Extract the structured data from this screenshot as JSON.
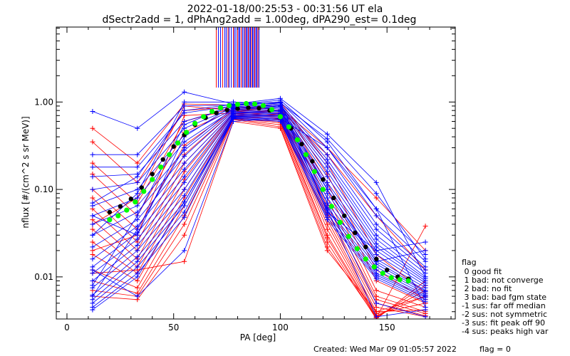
{
  "title": {
    "line1": "2022-01-18/00:25:53 - 00:31:56 UT ela",
    "line2": "dSectr2add = 1, dPhAng2add = 1.00deg, dPA290_est=    0.1deg"
  },
  "footer": {
    "created": "Created: Wed Mar 09 01:05:57 2022",
    "flag": "flag = 0"
  },
  "flag_legend": {
    "title": "flag",
    "items": [
      " 0 good fit",
      " 1 bad: not converge",
      " 2 bad: no fit",
      " 3 bad: bad fgm state",
      "-1 sus: far off median",
      "-2 sus: not symmetric",
      "-3 sus: fit peak off 90",
      "-4 sus: peaks high var"
    ]
  },
  "colors": {
    "axis": "#000000",
    "series_red": "#ff0000",
    "series_blue": "#0000ff",
    "fit_green": "#00ff00",
    "fit_black": "#000000"
  },
  "chart_data": {
    "type": "line",
    "xlabel": "PA [deg]",
    "ylabel": "nflux [#/(cm^2 s sr MeV)]",
    "xlim": [
      -5,
      182
    ],
    "ylim": [
      0.0033,
      7.2
    ],
    "yscale": "log",
    "grid": false,
    "x_ticks": [
      0,
      50,
      100,
      150
    ],
    "x_tick_labels": [
      "0",
      "50",
      "100",
      "150"
    ],
    "y_ticks": [
      0.01,
      0.1,
      1.0
    ],
    "y_tick_labels": [
      "0.01",
      "0.10",
      "1.00"
    ],
    "pa_bins": [
      12,
      33,
      55,
      78,
      100,
      122,
      145,
      168
    ],
    "sector_marker_pa": [
      70,
      71,
      72,
      73,
      74,
      74.7,
      75.5,
      76,
      77,
      78,
      78.5,
      79.2,
      80,
      80.5,
      81,
      81.7,
      82.3,
      83,
      83.5,
      84,
      84.5,
      85,
      85.5,
      86,
      86.5,
      87,
      87.5,
      88,
      88.5,
      89,
      89.5,
      90
    ],
    "fit_black": {
      "x": [
        20,
        25,
        30,
        35,
        40,
        45,
        50,
        55,
        60,
        65,
        70,
        75,
        80,
        85,
        90,
        95,
        100,
        105,
        110,
        115,
        120,
        125,
        130,
        135,
        140,
        145,
        150,
        155,
        160
      ],
      "y": [
        0.055,
        0.064,
        0.078,
        0.105,
        0.15,
        0.22,
        0.31,
        0.42,
        0.55,
        0.66,
        0.75,
        0.81,
        0.84,
        0.86,
        0.85,
        0.8,
        0.68,
        0.5,
        0.33,
        0.21,
        0.13,
        0.08,
        0.05,
        0.032,
        0.022,
        0.016,
        0.012,
        0.01,
        0.0095
      ]
    },
    "fit_green": {
      "x": [
        20,
        24,
        28,
        32,
        36,
        40,
        44,
        48,
        52,
        56,
        60,
        64,
        68,
        72,
        76,
        80,
        84,
        88,
        92,
        96,
        100,
        104,
        108,
        112,
        116,
        120,
        124,
        128,
        132,
        136,
        140,
        144,
        148,
        152,
        156,
        160
      ],
      "y": [
        0.045,
        0.05,
        0.058,
        0.072,
        0.095,
        0.13,
        0.18,
        0.25,
        0.34,
        0.45,
        0.57,
        0.68,
        0.78,
        0.86,
        0.91,
        0.94,
        0.96,
        0.95,
        0.91,
        0.82,
        0.68,
        0.52,
        0.37,
        0.25,
        0.16,
        0.1,
        0.064,
        0.042,
        0.029,
        0.021,
        0.016,
        0.013,
        0.011,
        0.0098,
        0.0093,
        0.009
      ]
    },
    "series_red": [
      [
        0.5,
        0.2,
        0.95,
        0.92,
        1.0,
        0.2,
        0.018,
        0.0065
      ],
      [
        0.35,
        0.12,
        0.8,
        0.88,
        0.95,
        0.15,
        0.012,
        0.0055
      ],
      [
        0.2,
        0.07,
        0.6,
        0.85,
        0.9,
        0.12,
        0.009,
        0.005
      ],
      [
        0.15,
        0.05,
        0.45,
        0.82,
        0.85,
        0.1,
        0.007,
        0.0045
      ],
      [
        0.1,
        0.035,
        0.32,
        0.8,
        0.8,
        0.08,
        0.006,
        0.004
      ],
      [
        0.08,
        0.025,
        0.25,
        0.78,
        0.75,
        0.065,
        0.0055,
        0.0038
      ],
      [
        0.06,
        0.02,
        0.2,
        0.76,
        0.72,
        0.055,
        0.005,
        0.0036
      ],
      [
        0.045,
        0.016,
        0.16,
        0.74,
        0.7,
        0.05,
        0.0045,
        0.0035
      ],
      [
        0.035,
        0.013,
        0.13,
        0.72,
        0.68,
        0.045,
        0.004,
        0.0042
      ],
      [
        0.025,
        0.011,
        0.1,
        0.7,
        0.65,
        0.04,
        0.0038,
        0.005
      ],
      [
        0.018,
        0.009,
        0.08,
        0.68,
        0.63,
        0.035,
        0.0036,
        0.006
      ],
      [
        0.012,
        0.0075,
        0.065,
        0.66,
        0.6,
        0.03,
        0.0035,
        0.007
      ],
      [
        0.009,
        0.0065,
        0.05,
        0.65,
        0.58,
        0.028,
        0.0034,
        0.008
      ],
      [
        0.007,
        0.006,
        0.04,
        0.64,
        0.55,
        0.025,
        0.0033,
        0.009
      ],
      [
        0.006,
        0.0055,
        0.03,
        0.63,
        0.52,
        0.022,
        0.0034,
        0.038
      ],
      [
        0.011,
        0.012,
        0.015,
        0.6,
        0.5,
        0.02,
        0.004,
        0.006
      ],
      [
        0.02,
        0.03,
        0.7,
        0.75,
        0.8,
        0.25,
        0.05,
        0.012
      ],
      [
        0.04,
        0.08,
        0.9,
        0.8,
        0.85,
        0.3,
        0.08,
        0.02
      ]
    ],
    "series_blue": [
      [
        0.78,
        0.5,
        1.3,
        0.95,
        1.1,
        0.43,
        0.12,
        0.01
      ],
      [
        0.25,
        0.25,
        0.9,
        0.93,
        1.05,
        0.35,
        0.06,
        0.0045
      ],
      [
        0.18,
        0.18,
        0.75,
        0.9,
        1.0,
        0.3,
        0.05,
        0.015
      ],
      [
        0.14,
        0.15,
        0.6,
        0.88,
        0.95,
        0.25,
        0.04,
        0.013
      ],
      [
        0.1,
        0.12,
        0.5,
        0.86,
        0.92,
        0.22,
        0.035,
        0.012
      ],
      [
        0.065,
        0.1,
        0.42,
        0.84,
        0.9,
        0.2,
        0.03,
        0.011
      ],
      [
        0.05,
        0.08,
        0.35,
        0.82,
        0.88,
        0.18,
        0.027,
        0.01
      ],
      [
        0.04,
        0.065,
        0.28,
        0.8,
        0.85,
        0.16,
        0.024,
        0.0095
      ],
      [
        0.03,
        0.055,
        0.24,
        0.78,
        0.82,
        0.14,
        0.022,
        0.009
      ],
      [
        0.022,
        0.045,
        0.2,
        0.76,
        0.8,
        0.12,
        0.02,
        0.0085
      ],
      [
        0.016,
        0.038,
        0.17,
        0.75,
        0.78,
        0.11,
        0.018,
        0.008
      ],
      [
        0.013,
        0.032,
        0.14,
        0.74,
        0.76,
        0.1,
        0.016,
        0.0075
      ],
      [
        0.011,
        0.027,
        0.12,
        0.72,
        0.74,
        0.09,
        0.015,
        0.007
      ],
      [
        0.009,
        0.023,
        0.1,
        0.7,
        0.72,
        0.08,
        0.014,
        0.0068
      ],
      [
        0.0075,
        0.02,
        0.085,
        0.69,
        0.7,
        0.07,
        0.013,
        0.0065
      ],
      [
        0.0062,
        0.017,
        0.072,
        0.68,
        0.68,
        0.062,
        0.012,
        0.0062
      ],
      [
        0.0055,
        0.015,
        0.065,
        0.67,
        0.66,
        0.058,
        0.011,
        0.006
      ],
      [
        0.005,
        0.013,
        0.055,
        0.66,
        0.64,
        0.052,
        0.0105,
        0.0058
      ],
      [
        0.0045,
        0.011,
        0.048,
        0.65,
        0.62,
        0.048,
        0.01,
        0.0055
      ],
      [
        0.0042,
        0.01,
        0.072,
        0.64,
        0.6,
        0.045,
        0.0095,
        0.0052
      ],
      [
        0.006,
        0.035,
        0.3,
        0.85,
        0.85,
        0.06,
        0.0035,
        0.0042
      ],
      [
        0.008,
        0.05,
        0.55,
        0.95,
        0.9,
        0.07,
        0.005,
        0.0035
      ],
      [
        0.03,
        0.09,
        1.0,
        1.0,
        0.95,
        0.1,
        0.015,
        0.02
      ],
      [
        0.05,
        0.03,
        0.4,
        0.92,
        1.0,
        0.055,
        0.02,
        0.025
      ],
      [
        0.012,
        0.006,
        0.02,
        0.6,
        0.65,
        0.3,
        0.06,
        0.018
      ],
      [
        0.07,
        0.14,
        0.8,
        0.94,
        0.98,
        0.38,
        0.09,
        0.016
      ]
    ]
  }
}
